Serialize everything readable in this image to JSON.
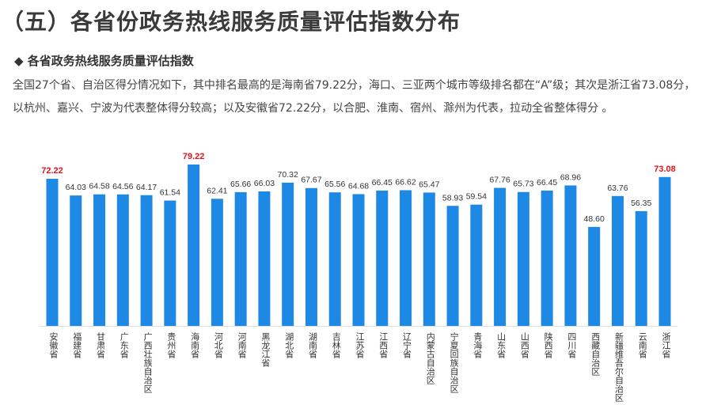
{
  "title": "（五）各省份政务热线服务质量评估指数分布",
  "subtitle": "◆  各省政务热线服务质量评估指数",
  "paragraph": "全国27个省、自治区得分情况如下，其中排名最高的是海南省79.22分，海口、三亚两个城市等级排名都在“A”级；其次是浙江省73.08分，以杭州、嘉兴、宁波为代表整体得分较高；以及安徽省72.22分，以合肥、淮南、宿州、滁州为代表，拉动全省整体得分 。",
  "chart_data": {
    "type": "bar",
    "categories": [
      "安徽省",
      "福建省",
      "甘肃省",
      "广东省",
      "广西壮族自治区",
      "贵州省",
      "海南省",
      "河北省",
      "河南省",
      "黑龙江省",
      "湖北省",
      "湖南省",
      "吉林省",
      "江苏省",
      "江西省",
      "辽宁省",
      "内蒙古自治区",
      "宁夏回族自治区",
      "青海省",
      "山东省",
      "山西省",
      "陕西省",
      "四川省",
      "西藏自治区",
      "新疆维吾尔自治区",
      "云南省",
      "浙江省"
    ],
    "values": [
      72.22,
      64.03,
      64.58,
      64.56,
      64.17,
      61.54,
      79.22,
      62.41,
      65.66,
      66.03,
      70.32,
      67.67,
      65.56,
      64.68,
      66.45,
      66.62,
      65.47,
      58.93,
      59.54,
      67.76,
      65.73,
      66.45,
      68.96,
      48.6,
      63.76,
      56.35,
      73.08
    ],
    "highlighted": [
      "安徽省",
      "海南省",
      "浙江省"
    ],
    "ylim": [
      0,
      80
    ],
    "grid": false,
    "colors": {
      "bar": "#1e88e5",
      "highlight_label": "#e0141e",
      "label": "#333333"
    }
  }
}
